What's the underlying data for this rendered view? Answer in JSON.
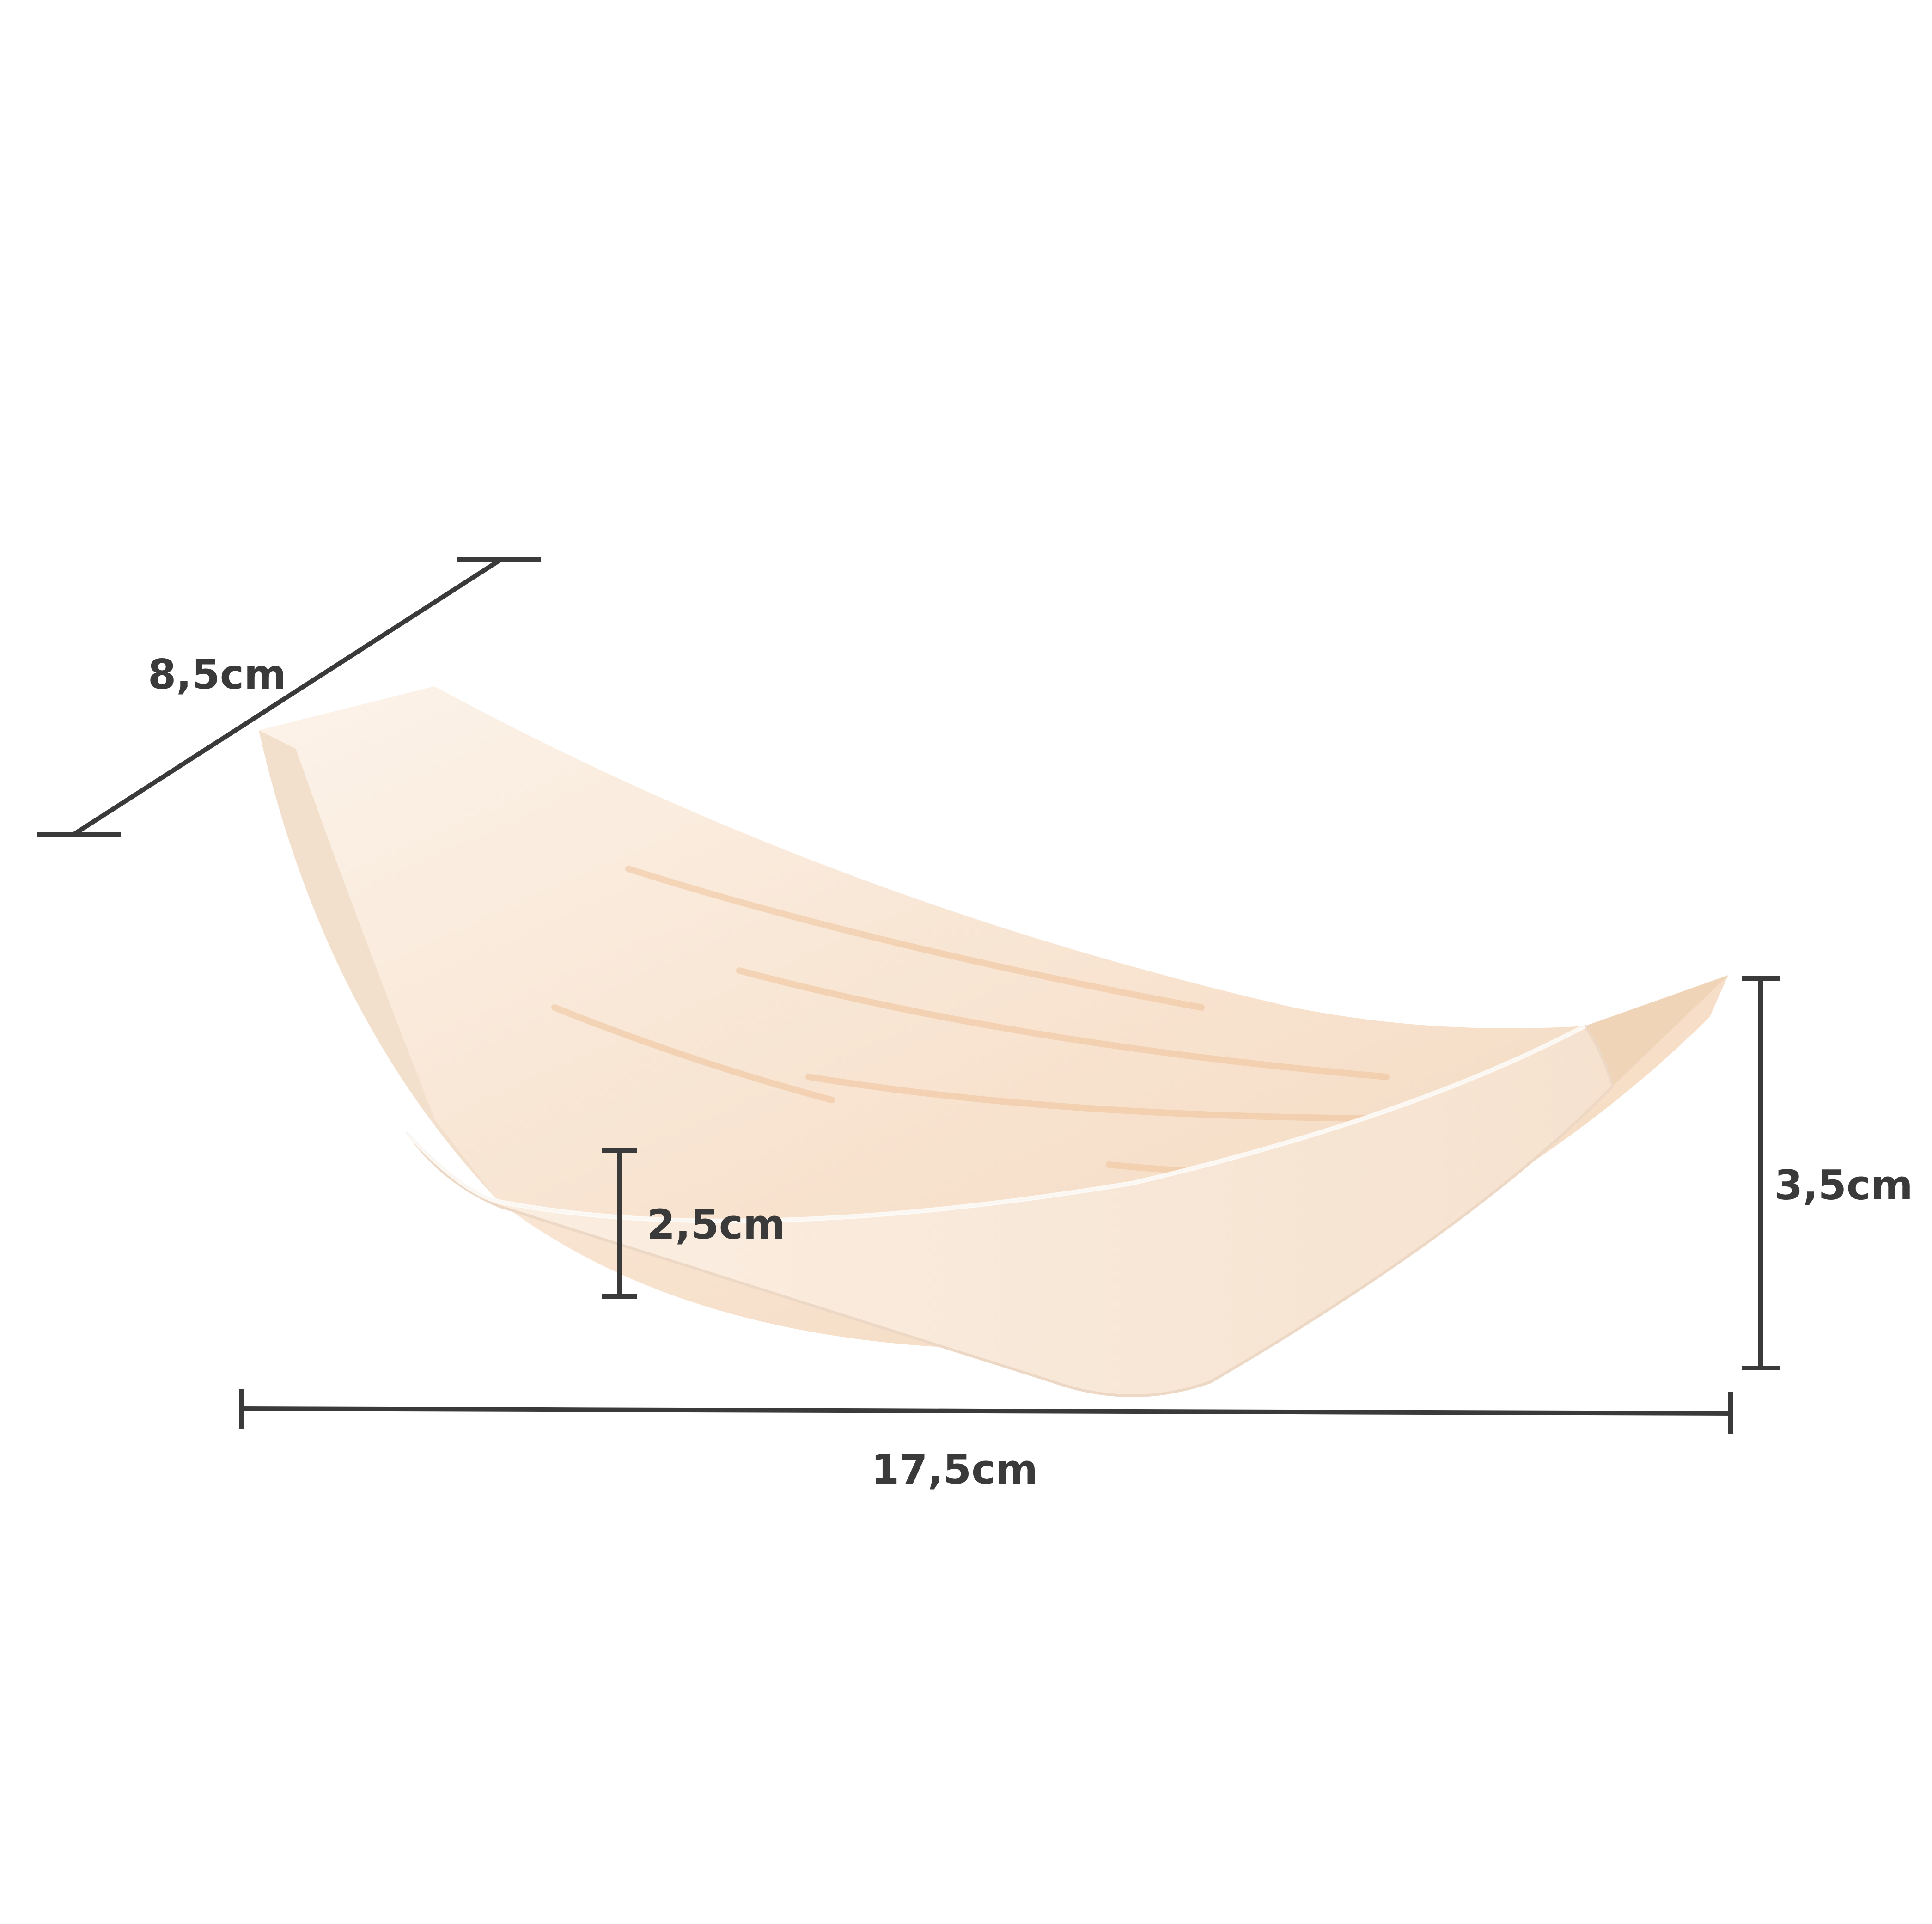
{
  "product": {
    "name": "wooden boat tray",
    "colors": {
      "wood_light": "#fbeee2",
      "wood_mid": "#f6dcc4",
      "wood_grain": "#efc39a",
      "wood_edge": "#f1e2d2",
      "shadow": "#e8cdb3"
    }
  },
  "dimensions": {
    "width_label": "8,5cm",
    "inner_depth_label": "2,5cm",
    "height_label": "3,5cm",
    "length_label": "17,5cm",
    "line_color": "#3a3a3a"
  }
}
